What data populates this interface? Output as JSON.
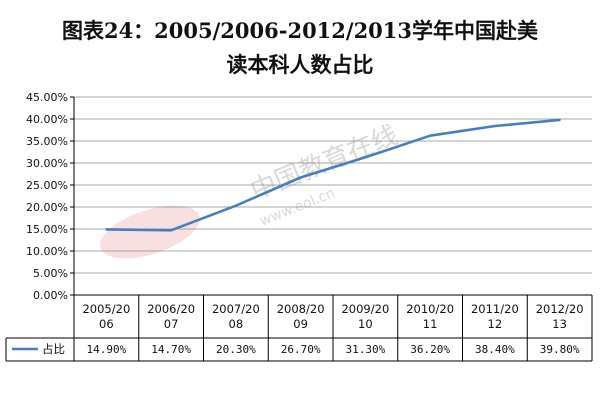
{
  "title_line1": "图表24：2005/2006-2012/2013学年中国赴美",
  "title_line2": "读本科人数占比",
  "watermark": "中国教育在线 www.eol.cn",
  "colors": {
    "line": "#4a7ebb",
    "grid": "#8c8c8c",
    "frame": "#000000"
  },
  "chart_data": {
    "type": "line",
    "title": "图表24：2005/2006-2012/2013学年中国赴美读本科人数占比",
    "categories": [
      [
        "2005/20",
        "06"
      ],
      [
        "2006/20",
        "07"
      ],
      [
        "2007/20",
        "08"
      ],
      [
        "2008/20",
        "09"
      ],
      [
        "2009/20",
        "10"
      ],
      [
        "2010/20",
        "11"
      ],
      [
        "2011/20",
        "12"
      ],
      [
        "2012/20",
        "13"
      ]
    ],
    "ylim": [
      0,
      45
    ],
    "yticks": [
      "0.00%",
      "5.00%",
      "10.00%",
      "15.00%",
      "20.00%",
      "25.00%",
      "30.00%",
      "35.00%",
      "40.00%",
      "45.00%"
    ],
    "series": [
      {
        "name": "占比",
        "values": [
          14.9,
          14.7,
          20.3,
          26.7,
          31.3,
          36.2,
          38.4,
          39.8
        ],
        "labels": [
          "14.90%",
          "14.70%",
          "20.30%",
          "26.70%",
          "31.30%",
          "36.20%",
          "38.40%",
          "39.80%"
        ]
      }
    ],
    "grid": true,
    "legend": "data-table-left"
  }
}
